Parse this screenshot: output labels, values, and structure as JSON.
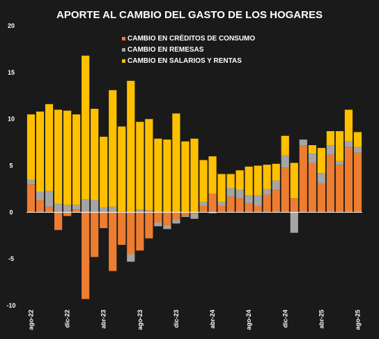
{
  "chart_data": {
    "type": "bar",
    "stacked": true,
    "title": "APORTE AL CAMBIO DEL GASTO DE LOS HOGARES",
    "ylim": [
      -10,
      20
    ],
    "yticks": [
      20,
      15,
      10,
      5,
      0,
      -5,
      -10
    ],
    "xtick_labels": [
      "ago-22",
      "dic-22",
      "abr-23",
      "ago-23",
      "dic-23",
      "abr-24",
      "ago-24",
      "dic-24",
      "abr-25",
      "ago-25"
    ],
    "xtick_indices": [
      0,
      4,
      8,
      12,
      16,
      20,
      24,
      28,
      32,
      36
    ],
    "legend_position": "top",
    "categories": [
      "ago-22",
      "sep-22",
      "oct-22",
      "nov-22",
      "dic-22",
      "ene-23",
      "feb-23",
      "mar-23",
      "abr-23",
      "may-23",
      "jun-23",
      "jul-23",
      "ago-23",
      "sep-23",
      "oct-23",
      "nov-23",
      "dic-23",
      "ene-24",
      "feb-24",
      "mar-24",
      "abr-24",
      "may-24",
      "jun-24",
      "jul-24",
      "ago-24",
      "sep-24",
      "oct-24",
      "nov-24",
      "dic-24",
      "ene-25",
      "feb-25",
      "mar-25",
      "abr-25",
      "may-25",
      "jun-25",
      "jul-25",
      "ago-25"
    ],
    "series": [
      {
        "name": "CAMBIO EN CRÉDITOS DE CONSUMO",
        "color": "#ed7d31",
        "values": [
          3.0,
          1.3,
          0.6,
          -1.9,
          -0.4,
          0.3,
          -9.3,
          -4.8,
          -1.7,
          -6.3,
          -3.5,
          -4.5,
          -4.1,
          -2.8,
          -1.1,
          -1.4,
          -0.8,
          -0.4,
          -0.2,
          0.7,
          2.0,
          0.7,
          1.7,
          1.5,
          1.0,
          0.7,
          1.9,
          2.4,
          4.8,
          1.5,
          7.2,
          5.3,
          3.1,
          6.2,
          5.1,
          7.0,
          6.4
        ]
      },
      {
        "name": "CAMBIO EN REMESAS",
        "color": "#a5a5a5",
        "values": [
          0.5,
          0.9,
          1.7,
          0.9,
          0.8,
          0.5,
          1.4,
          1.3,
          0.5,
          0.6,
          0.1,
          -0.8,
          0.3,
          0.2,
          -0.4,
          -0.4,
          -0.4,
          -0.1,
          -0.5,
          0.4,
          -0.1,
          0.4,
          0.9,
          0.9,
          0.8,
          1.1,
          0.6,
          1.0,
          1.3,
          -2.2,
          0.6,
          1.0,
          1.1,
          1.0,
          0.4,
          0.6,
          0.6
        ]
      },
      {
        "name": "CAMBIO EN SALARIOS Y RENTAS",
        "color": "#ffc000",
        "values": [
          7.0,
          8.6,
          9.3,
          10.1,
          10.1,
          9.7,
          15.4,
          9.8,
          7.6,
          12.5,
          9.1,
          14.1,
          9.4,
          9.8,
          7.9,
          7.8,
          10.6,
          7.6,
          7.9,
          4.5,
          4.0,
          3.0,
          1.5,
          2.1,
          3.1,
          3.2,
          2.6,
          1.8,
          2.1,
          3.8,
          0.0,
          0.9,
          2.7,
          1.5,
          3.2,
          3.4,
          1.6
        ]
      }
    ]
  }
}
